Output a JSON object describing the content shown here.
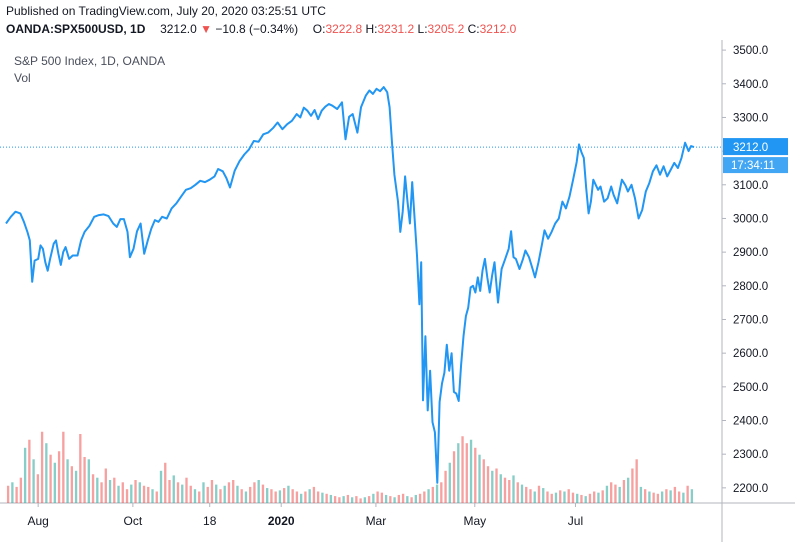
{
  "header": {
    "published": "Published on TradingView.com, July 20, 2020 03:25:51 UTC",
    "symbol": "OANDA:SPX500USD, 1D",
    "last": "3212.0",
    "change_arrow": "▼",
    "change": "−10.8 (−0.34%)",
    "o_label": "O:",
    "o_val": "3222.8",
    "h_label": "H:",
    "h_val": "3231.2",
    "l_label": "L:",
    "l_val": "3205.2",
    "c_label": "C:",
    "c_val": "3212.0"
  },
  "legend": {
    "title": "S&P 500 Index, 1D, OANDA",
    "volume": "Vol"
  },
  "colors": {
    "line": "#2196f3",
    "price_badge": "#2196f3",
    "down": "#ef5350",
    "vol_up": "#26a69a",
    "vol_down": "#ef5350",
    "grid": "#e0e3eb",
    "axis_text": "#131722"
  },
  "chart_data": {
    "type": "line",
    "title": "S&P 500 Index, 1D, OANDA",
    "y_axis": {
      "position": "right",
      "ticks": [
        2200,
        2300,
        2400,
        2500,
        2600,
        2700,
        2800,
        2900,
        3000,
        3100,
        3200,
        3300,
        3400,
        3500
      ],
      "tick_labels": [
        "2200.0",
        "2300.0",
        "2400.0",
        "2500.0",
        "2600.0",
        "2700.0",
        "2800.0",
        "2900.0",
        "3000.0",
        "3100.0",
        "3200.0",
        "3300.0",
        "3400.0",
        "3500.0"
      ],
      "range": [
        2155,
        3530
      ]
    },
    "x_axis": {
      "ticks": [
        {
          "label": "Aug",
          "t": 0.054
        },
        {
          "label": "Oct",
          "t": 0.213
        },
        {
          "label": "18",
          "t": 0.342
        },
        {
          "label": "2020",
          "t": 0.462,
          "bold": true
        },
        {
          "label": "Mar",
          "t": 0.621
        },
        {
          "label": "May",
          "t": 0.787
        },
        {
          "label": "Jul",
          "t": 0.956
        }
      ]
    },
    "current_price": 3212.0,
    "current_price_label": "3212.0",
    "countdown_label": "17:34:11",
    "price_line_style": "dotted",
    "series": [
      {
        "points": [
          [
            0.0,
            2985
          ],
          [
            0.008,
            3005
          ],
          [
            0.016,
            3020
          ],
          [
            0.024,
            3015
          ],
          [
            0.03,
            2990
          ],
          [
            0.036,
            2960
          ],
          [
            0.04,
            2935
          ],
          [
            0.044,
            2812
          ],
          [
            0.048,
            2875
          ],
          [
            0.054,
            2880
          ],
          [
            0.058,
            2920
          ],
          [
            0.062,
            2910
          ],
          [
            0.066,
            2870
          ],
          [
            0.07,
            2845
          ],
          [
            0.074,
            2880
          ],
          [
            0.08,
            2925
          ],
          [
            0.084,
            2935
          ],
          [
            0.088,
            2895
          ],
          [
            0.092,
            2862
          ],
          [
            0.096,
            2900
          ],
          [
            0.1,
            2915
          ],
          [
            0.106,
            2880
          ],
          [
            0.112,
            2890
          ],
          [
            0.12,
            2890
          ],
          [
            0.126,
            2935
          ],
          [
            0.132,
            2960
          ],
          [
            0.14,
            2978
          ],
          [
            0.148,
            3005
          ],
          [
            0.156,
            3010
          ],
          [
            0.164,
            3012
          ],
          [
            0.172,
            3007
          ],
          [
            0.18,
            2985
          ],
          [
            0.186,
            2975
          ],
          [
            0.192,
            2998
          ],
          [
            0.198,
            2998
          ],
          [
            0.204,
            2960
          ],
          [
            0.208,
            2885
          ],
          [
            0.214,
            2910
          ],
          [
            0.22,
            2962
          ],
          [
            0.226,
            2985
          ],
          [
            0.232,
            2895
          ],
          [
            0.238,
            2935
          ],
          [
            0.244,
            2970
          ],
          [
            0.25,
            2995
          ],
          [
            0.256,
            2990
          ],
          [
            0.262,
            3005
          ],
          [
            0.27,
            3000
          ],
          [
            0.278,
            3030
          ],
          [
            0.286,
            3045
          ],
          [
            0.294,
            3065
          ],
          [
            0.302,
            3085
          ],
          [
            0.31,
            3090
          ],
          [
            0.318,
            3100
          ],
          [
            0.326,
            3112
          ],
          [
            0.334,
            3108
          ],
          [
            0.342,
            3115
          ],
          [
            0.35,
            3125
          ],
          [
            0.356,
            3147
          ],
          [
            0.364,
            3140
          ],
          [
            0.37,
            3120
          ],
          [
            0.376,
            3092
          ],
          [
            0.384,
            3142
          ],
          [
            0.392,
            3170
          ],
          [
            0.4,
            3190
          ],
          [
            0.408,
            3205
          ],
          [
            0.416,
            3230
          ],
          [
            0.424,
            3228
          ],
          [
            0.432,
            3250
          ],
          [
            0.44,
            3255
          ],
          [
            0.448,
            3268
          ],
          [
            0.456,
            3285
          ],
          [
            0.464,
            3265
          ],
          [
            0.472,
            3280
          ],
          [
            0.48,
            3290
          ],
          [
            0.488,
            3310
          ],
          [
            0.494,
            3300
          ],
          [
            0.5,
            3329
          ],
          [
            0.506,
            3320
          ],
          [
            0.512,
            3305
          ],
          [
            0.518,
            3322
          ],
          [
            0.524,
            3295
          ],
          [
            0.53,
            3320
          ],
          [
            0.536,
            3332
          ],
          [
            0.542,
            3340
          ],
          [
            0.548,
            3335
          ],
          [
            0.556,
            3325
          ],
          [
            0.564,
            3345
          ],
          [
            0.57,
            3235
          ],
          [
            0.576,
            3302
          ],
          [
            0.582,
            3310
          ],
          [
            0.59,
            3255
          ],
          [
            0.596,
            3330
          ],
          [
            0.604,
            3365
          ],
          [
            0.61,
            3380
          ],
          [
            0.616,
            3370
          ],
          [
            0.622,
            3385
          ],
          [
            0.628,
            3378
          ],
          [
            0.634,
            3390
          ],
          [
            0.64,
            3375
          ],
          [
            0.644,
            3330
          ],
          [
            0.648,
            3225
          ],
          [
            0.652,
            3130
          ],
          [
            0.658,
            3050
          ],
          [
            0.662,
            2960
          ],
          [
            0.666,
            3020
          ],
          [
            0.67,
            3125
          ],
          [
            0.674,
            3050
          ],
          [
            0.678,
            2985
          ],
          [
            0.682,
            3108
          ],
          [
            0.686,
            3000
          ],
          [
            0.69,
            2890
          ],
          [
            0.694,
            2745
          ],
          [
            0.697,
            2870
          ],
          [
            0.7,
            2460
          ],
          [
            0.704,
            2650
          ],
          [
            0.708,
            2430
          ],
          [
            0.712,
            2548
          ],
          [
            0.716,
            2395
          ],
          [
            0.72,
            2365
          ],
          [
            0.724,
            2215
          ],
          [
            0.728,
            2455
          ],
          [
            0.732,
            2510
          ],
          [
            0.736,
            2542
          ],
          [
            0.74,
            2625
          ],
          [
            0.744,
            2548
          ],
          [
            0.748,
            2600
          ],
          [
            0.752,
            2485
          ],
          [
            0.756,
            2480
          ],
          [
            0.76,
            2458
          ],
          [
            0.764,
            2565
          ],
          [
            0.768,
            2650
          ],
          [
            0.772,
            2710
          ],
          [
            0.776,
            2735
          ],
          [
            0.78,
            2795
          ],
          [
            0.784,
            2800
          ],
          [
            0.788,
            2780
          ],
          [
            0.792,
            2825
          ],
          [
            0.796,
            2785
          ],
          [
            0.8,
            2845
          ],
          [
            0.804,
            2880
          ],
          [
            0.808,
            2825
          ],
          [
            0.812,
            2780
          ],
          [
            0.816,
            2830
          ],
          [
            0.82,
            2870
          ],
          [
            0.826,
            2750
          ],
          [
            0.832,
            2850
          ],
          [
            0.838,
            2880
          ],
          [
            0.844,
            2910
          ],
          [
            0.848,
            2962
          ],
          [
            0.852,
            2885
          ],
          [
            0.856,
            2880
          ],
          [
            0.862,
            2850
          ],
          [
            0.868,
            2880
          ],
          [
            0.872,
            2905
          ],
          [
            0.878,
            2885
          ],
          [
            0.884,
            2850
          ],
          [
            0.888,
            2825
          ],
          [
            0.894,
            2870
          ],
          [
            0.9,
            2925
          ],
          [
            0.904,
            2965
          ],
          [
            0.91,
            2940
          ],
          [
            0.916,
            2960
          ],
          [
            0.922,
            2985
          ],
          [
            0.928,
            3000
          ],
          [
            0.934,
            3050
          ],
          [
            0.94,
            3030
          ],
          [
            0.946,
            3065
          ],
          [
            0.952,
            3115
          ],
          [
            0.958,
            3168
          ],
          [
            0.962,
            3220
          ],
          [
            0.966,
            3197
          ],
          [
            0.97,
            3180
          ],
          [
            0.974,
            3090
          ],
          [
            0.978,
            3015
          ],
          [
            0.982,
            3050
          ],
          [
            0.986,
            3115
          ],
          [
            0.99,
            3100
          ],
          [
            0.994,
            3085
          ],
          [
            0.998,
            3095
          ],
          [
            1.004,
            3050
          ],
          [
            1.01,
            3060
          ],
          [
            1.016,
            3095
          ],
          [
            1.02,
            3070
          ],
          [
            1.026,
            3045
          ],
          [
            1.03,
            3080
          ],
          [
            1.034,
            3115
          ],
          [
            1.04,
            3098
          ],
          [
            1.044,
            3080
          ],
          [
            1.05,
            3100
          ],
          [
            1.056,
            3060
          ],
          [
            1.062,
            3000
          ],
          [
            1.068,
            3025
          ],
          [
            1.074,
            3080
          ],
          [
            1.08,
            3105
          ],
          [
            1.086,
            3140
          ],
          [
            1.092,
            3158
          ],
          [
            1.098,
            3130
          ],
          [
            1.104,
            3155
          ],
          [
            1.11,
            3125
          ],
          [
            1.116,
            3145
          ],
          [
            1.122,
            3165
          ],
          [
            1.128,
            3150
          ],
          [
            1.134,
            3180
          ],
          [
            1.14,
            3225
          ],
          [
            1.146,
            3200
          ],
          [
            1.15,
            3215
          ],
          [
            1.155,
            3212
          ]
        ]
      }
    ],
    "volume_series": {
      "name": "Vol",
      "max_ref": 1,
      "values": [
        0.15,
        0.18,
        0.14,
        0.22,
        0.48,
        0.55,
        0.38,
        0.25,
        0.62,
        0.52,
        0.42,
        0.35,
        0.45,
        0.62,
        0.38,
        0.32,
        0.28,
        0.6,
        0.4,
        0.38,
        0.25,
        0.22,
        0.18,
        0.3,
        0.2,
        0.22,
        0.15,
        0.18,
        0.12,
        0.16,
        0.2,
        0.18,
        0.15,
        0.14,
        0.12,
        0.1,
        0.28,
        0.35,
        0.2,
        0.24,
        0.18,
        0.16,
        0.22,
        0.15,
        0.12,
        0.1,
        0.18,
        0.14,
        0.2,
        0.16,
        0.12,
        0.15,
        0.18,
        0.2,
        0.15,
        0.12,
        0.1,
        0.14,
        0.18,
        0.2,
        0.16,
        0.13,
        0.12,
        0.1,
        0.11,
        0.13,
        0.15,
        0.12,
        0.1,
        0.08,
        0.1,
        0.12,
        0.14,
        0.1,
        0.09,
        0.08,
        0.07,
        0.06,
        0.05,
        0.06,
        0.07,
        0.05,
        0.06,
        0.04,
        0.05,
        0.06,
        0.08,
        0.1,
        0.09,
        0.07,
        0.06,
        0.05,
        0.07,
        0.08,
        0.06,
        0.05,
        0.07,
        0.08,
        0.1,
        0.12,
        0.14,
        0.16,
        0.18,
        0.28,
        0.35,
        0.45,
        0.52,
        0.58,
        0.52,
        0.55,
        0.48,
        0.42,
        0.38,
        0.32,
        0.28,
        0.3,
        0.25,
        0.22,
        0.2,
        0.24,
        0.18,
        0.16,
        0.14,
        0.12,
        0.1,
        0.15,
        0.13,
        0.1,
        0.08,
        0.09,
        0.11,
        0.1,
        0.12,
        0.09,
        0.08,
        0.07,
        0.06,
        0.08,
        0.1,
        0.09,
        0.11,
        0.15,
        0.18,
        0.16,
        0.14,
        0.2,
        0.22,
        0.3,
        0.38,
        0.14,
        0.12,
        0.1,
        0.09,
        0.08,
        0.1,
        0.12,
        0.11,
        0.14,
        0.1,
        0.09,
        0.15,
        0.12
      ],
      "direction": "mixed"
    }
  }
}
